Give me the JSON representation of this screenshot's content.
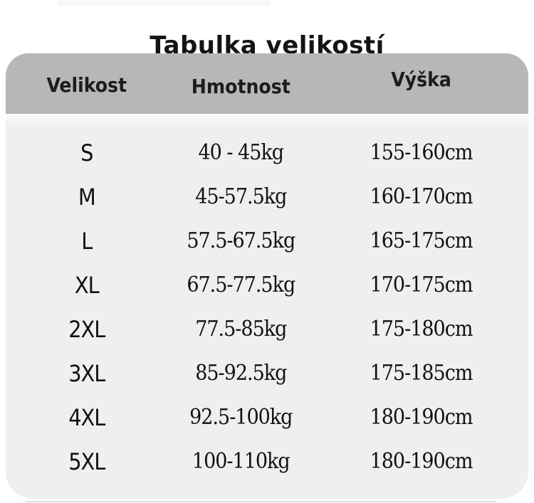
{
  "page_title": "Tabulka velikostí",
  "size_table": {
    "columns": [
      "Velikost",
      "Hmotnost",
      "Výška"
    ],
    "rows": [
      {
        "size": "S",
        "weight": "40 - 45kg",
        "height": "155-160cm"
      },
      {
        "size": "M",
        "weight": "45-57.5kg",
        "height": "160-170cm"
      },
      {
        "size": "L",
        "weight": "57.5-67.5kg",
        "height": "165-175cm"
      },
      {
        "size": "XL",
        "weight": "67.5-77.5kg",
        "height": "170-175cm"
      },
      {
        "size": "2XL",
        "weight": "77.5-85kg",
        "height": "175-180cm"
      },
      {
        "size": "3XL",
        "weight": "85-92.5kg",
        "height": "175-185cm"
      },
      {
        "size": "4XL",
        "weight": "92.5-100kg",
        "height": "180-190cm"
      },
      {
        "size": "5XL",
        "weight": "100-110kg",
        "height": "180-190cm"
      }
    ]
  },
  "colors": {
    "page_bg": "#ffffff",
    "header_bg": "#b7b7b7",
    "card_bg": "#efefef",
    "text": "#141414"
  }
}
